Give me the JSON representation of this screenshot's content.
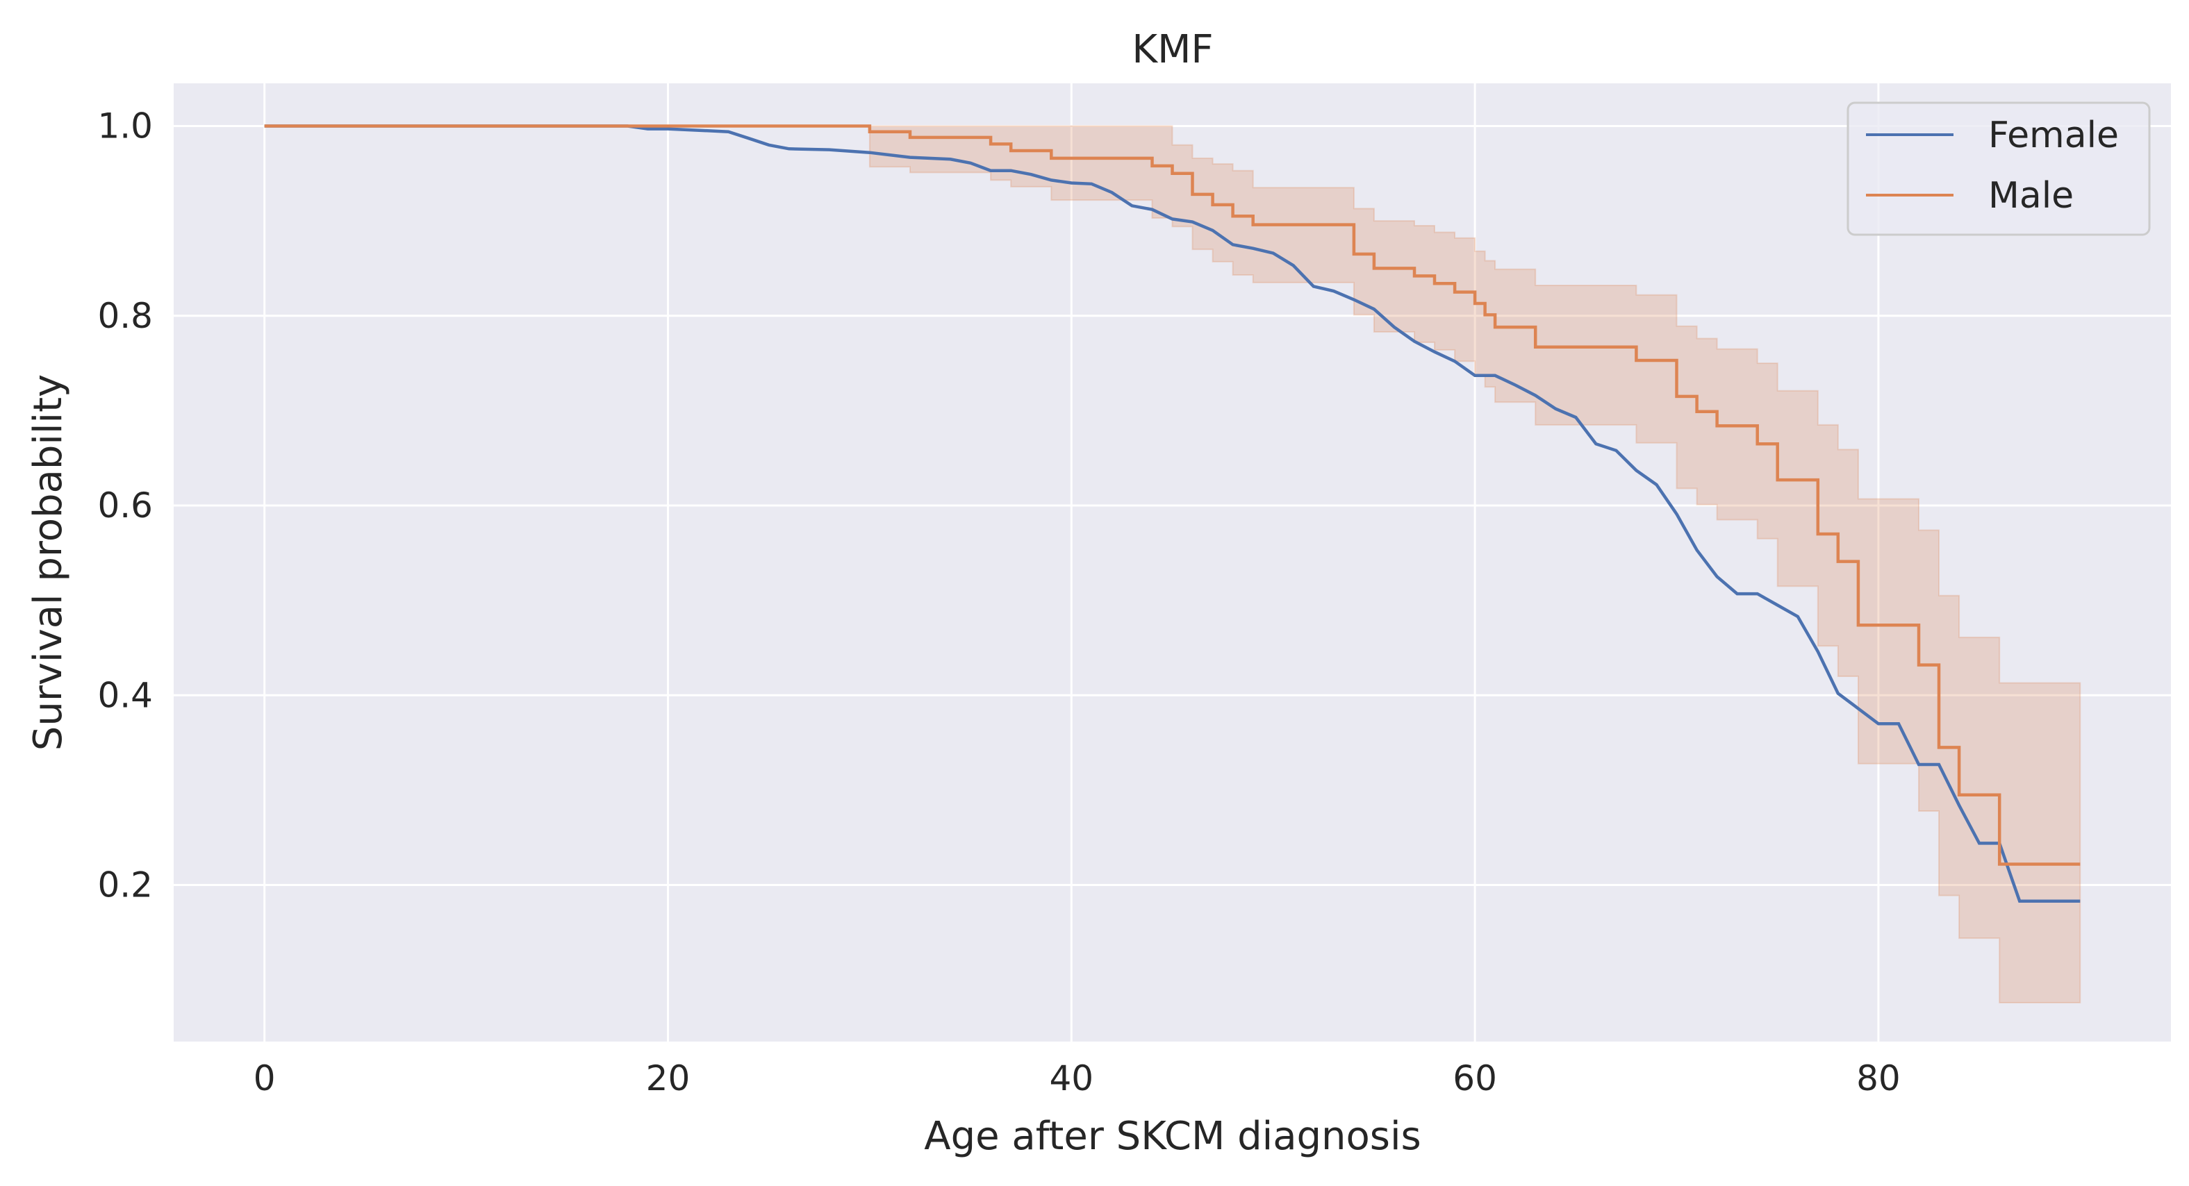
{
  "chart_data": {
    "type": "line",
    "title": "KMF",
    "xlabel": "Age after SKCM diagnosis",
    "ylabel": "Survival probability",
    "xlim": [
      -4.5,
      94.5
    ],
    "ylim": [
      0.035,
      1.045
    ],
    "x_ticks": [
      0,
      20,
      40,
      60,
      80
    ],
    "y_ticks": [
      0.2,
      0.4,
      0.6,
      0.8,
      1.0
    ],
    "x_tick_labels": [
      "0",
      "20",
      "40",
      "60",
      "80"
    ],
    "y_tick_labels": [
      "0.2",
      "0.4",
      "0.6",
      "0.8",
      "1.0"
    ],
    "grid": true,
    "legend_position": "top-right",
    "series": [
      {
        "name": "Female",
        "color": "#4c72b0",
        "step": false,
        "x": [
          0,
          18,
          19,
          20,
          21,
          23,
          24,
          25,
          26,
          28,
          30,
          32,
          34,
          35,
          36,
          37,
          38,
          39,
          40,
          41,
          42,
          43,
          44,
          45,
          46,
          47,
          48,
          49,
          50,
          51,
          52,
          53,
          54,
          55,
          56,
          57,
          58,
          59,
          60,
          61,
          62,
          63,
          64,
          65,
          66,
          67,
          68,
          69,
          70,
          71,
          72,
          73,
          74,
          75,
          76,
          77,
          78,
          79,
          80,
          81,
          82,
          83,
          84,
          85,
          86,
          87,
          88,
          89,
          90
        ],
        "y": [
          1.0,
          1.0,
          0.997,
          0.997,
          0.996,
          0.994,
          0.987,
          0.98,
          0.976,
          0.975,
          0.972,
          0.967,
          0.965,
          0.961,
          0.953,
          0.953,
          0.949,
          0.943,
          0.94,
          0.939,
          0.93,
          0.916,
          0.912,
          0.902,
          0.899,
          0.89,
          0.875,
          0.871,
          0.866,
          0.853,
          0.831,
          0.826,
          0.817,
          0.807,
          0.788,
          0.773,
          0.762,
          0.752,
          0.737,
          0.737,
          0.727,
          0.716,
          0.702,
          0.693,
          0.665,
          0.658,
          0.637,
          0.622,
          0.591,
          0.553,
          0.525,
          0.507,
          0.507,
          0.495,
          0.483,
          0.446,
          0.402,
          0.386,
          0.37,
          0.37,
          0.327,
          0.327,
          0.284,
          0.244,
          0.244,
          0.183,
          0.183,
          0.183,
          0.183
        ]
      },
      {
        "name": "Male",
        "color": "#dd8452",
        "step": true,
        "x": [
          0,
          30,
          31,
          32,
          34,
          36,
          37,
          39,
          42,
          44,
          45,
          46,
          47,
          48,
          49,
          54,
          55,
          57,
          58,
          59,
          60,
          60.5,
          61,
          63,
          64,
          68,
          70,
          71,
          72,
          74,
          75,
          77,
          78,
          79,
          82,
          83,
          84,
          86,
          90
        ],
        "y": [
          1.0,
          0.994,
          0.994,
          0.988,
          0.988,
          0.981,
          0.974,
          0.966,
          0.966,
          0.958,
          0.95,
          0.928,
          0.917,
          0.905,
          0.896,
          0.865,
          0.85,
          0.842,
          0.834,
          0.825,
          0.813,
          0.801,
          0.788,
          0.767,
          0.767,
          0.753,
          0.715,
          0.699,
          0.684,
          0.665,
          0.627,
          0.57,
          0.541,
          0.474,
          0.432,
          0.345,
          0.295,
          0.222,
          0.222
        ],
        "ci_lower": [
          1.0,
          0.957,
          0.957,
          0.951,
          0.951,
          0.943,
          0.936,
          0.922,
          0.922,
          0.903,
          0.894,
          0.87,
          0.857,
          0.843,
          0.835,
          0.801,
          0.783,
          0.772,
          0.764,
          0.752,
          0.738,
          0.725,
          0.709,
          0.685,
          0.685,
          0.666,
          0.618,
          0.601,
          0.585,
          0.565,
          0.515,
          0.452,
          0.42,
          0.328,
          0.278,
          0.189,
          0.144,
          0.076,
          0.076
        ],
        "ci_upper": [
          1.0,
          1.0,
          1.0,
          1.0,
          1.0,
          1.0,
          1.0,
          1.0,
          1.0,
          1.0,
          0.98,
          0.966,
          0.96,
          0.953,
          0.935,
          0.913,
          0.9,
          0.895,
          0.888,
          0.882,
          0.868,
          0.858,
          0.849,
          0.832,
          0.832,
          0.822,
          0.789,
          0.776,
          0.765,
          0.75,
          0.721,
          0.685,
          0.659,
          0.607,
          0.574,
          0.505,
          0.461,
          0.413,
          0.413
        ]
      }
    ]
  },
  "colors": {
    "plot_background": "#eaeaf2",
    "grid": "#ffffff",
    "text": "#262626",
    "female": "#4c72b0",
    "male": "#dd8452"
  }
}
